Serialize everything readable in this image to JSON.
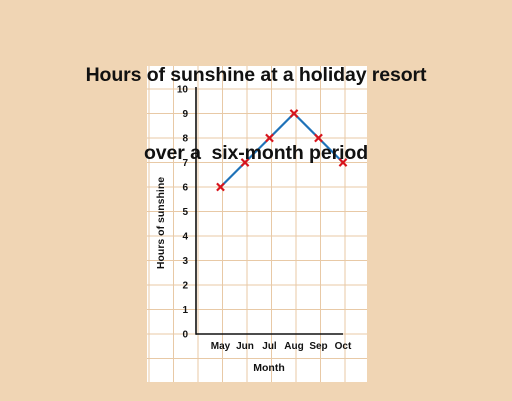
{
  "title_line1": "Hours of sunshine at a holiday resort",
  "title_line2": "over a  six-month period",
  "colors": {
    "background": "#f0d5b4",
    "grid_panel": "#ffffff",
    "grid_line": "#e8c9a6",
    "line": "#1f72b8",
    "marker": "#d8141c",
    "axis": "#111111"
  },
  "chart_data": {
    "type": "line",
    "title": "Hours of sunshine at a holiday resort over a  six-month period",
    "xlabel": "Month",
    "ylabel": "Hours of sunshine",
    "categories": [
      "May",
      "Jun",
      "Jul",
      "Aug",
      "Sep",
      "Oct"
    ],
    "values": [
      6,
      7,
      8,
      9,
      8,
      7
    ],
    "ylim": [
      0,
      10
    ],
    "yticks": [
      "0",
      "1",
      "2",
      "3",
      "4",
      "5",
      "6",
      "7",
      "8",
      "9",
      "10"
    ],
    "marker": "x",
    "grid": true
  }
}
